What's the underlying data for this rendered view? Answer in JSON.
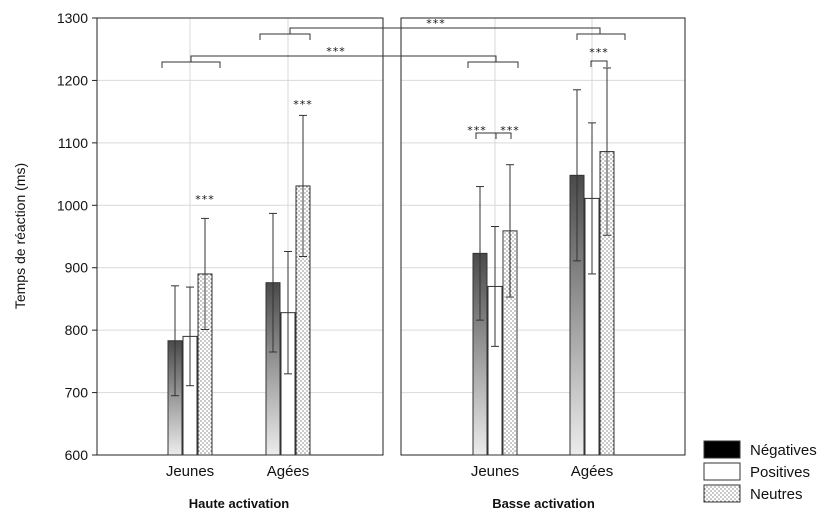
{
  "chart_data": {
    "type": "bar",
    "ylabel": "Temps de réaction (ms)",
    "ylim": [
      600,
      1300
    ],
    "yticks": [
      600,
      700,
      800,
      900,
      1000,
      1100,
      1200,
      1300
    ],
    "grid": true,
    "panels": [
      {
        "title": "Haute activation",
        "categories": [
          "Jeunes",
          "Agées"
        ],
        "series": [
          {
            "name": "Négatives",
            "values": [
              783,
              876
            ],
            "err": [
              88,
              111
            ]
          },
          {
            "name": "Positives",
            "values": [
              790,
              828
            ],
            "err": [
              79,
              98
            ]
          },
          {
            "name": "Neutres",
            "values": [
              890,
              1031
            ],
            "err": [
              89,
              113
            ]
          }
        ]
      },
      {
        "title": "Basse activation",
        "categories": [
          "Jeunes",
          "Agées"
        ],
        "series": [
          {
            "name": "Négatives",
            "values": [
              923,
              1048
            ],
            "err": [
              107,
              137
            ]
          },
          {
            "name": "Positives",
            "values": [
              870,
              1011
            ],
            "err": [
              96,
              121
            ]
          },
          {
            "name": "Neutres",
            "values": [
              959,
              1086
            ],
            "err": [
              106,
              134
            ]
          }
        ]
      }
    ],
    "legend": {
      "position": "bottom-right",
      "entries": [
        "Négatives",
        "Positives",
        "Neutres"
      ]
    },
    "annotations": [
      "***"
    ],
    "colors": {
      "negatives_top": "#4a4a4a",
      "negatives_bottom": "#e6e6e6",
      "positives": "#ffffff",
      "neutres": "#f2f2f2",
      "legend_negatives": "#000000"
    }
  }
}
